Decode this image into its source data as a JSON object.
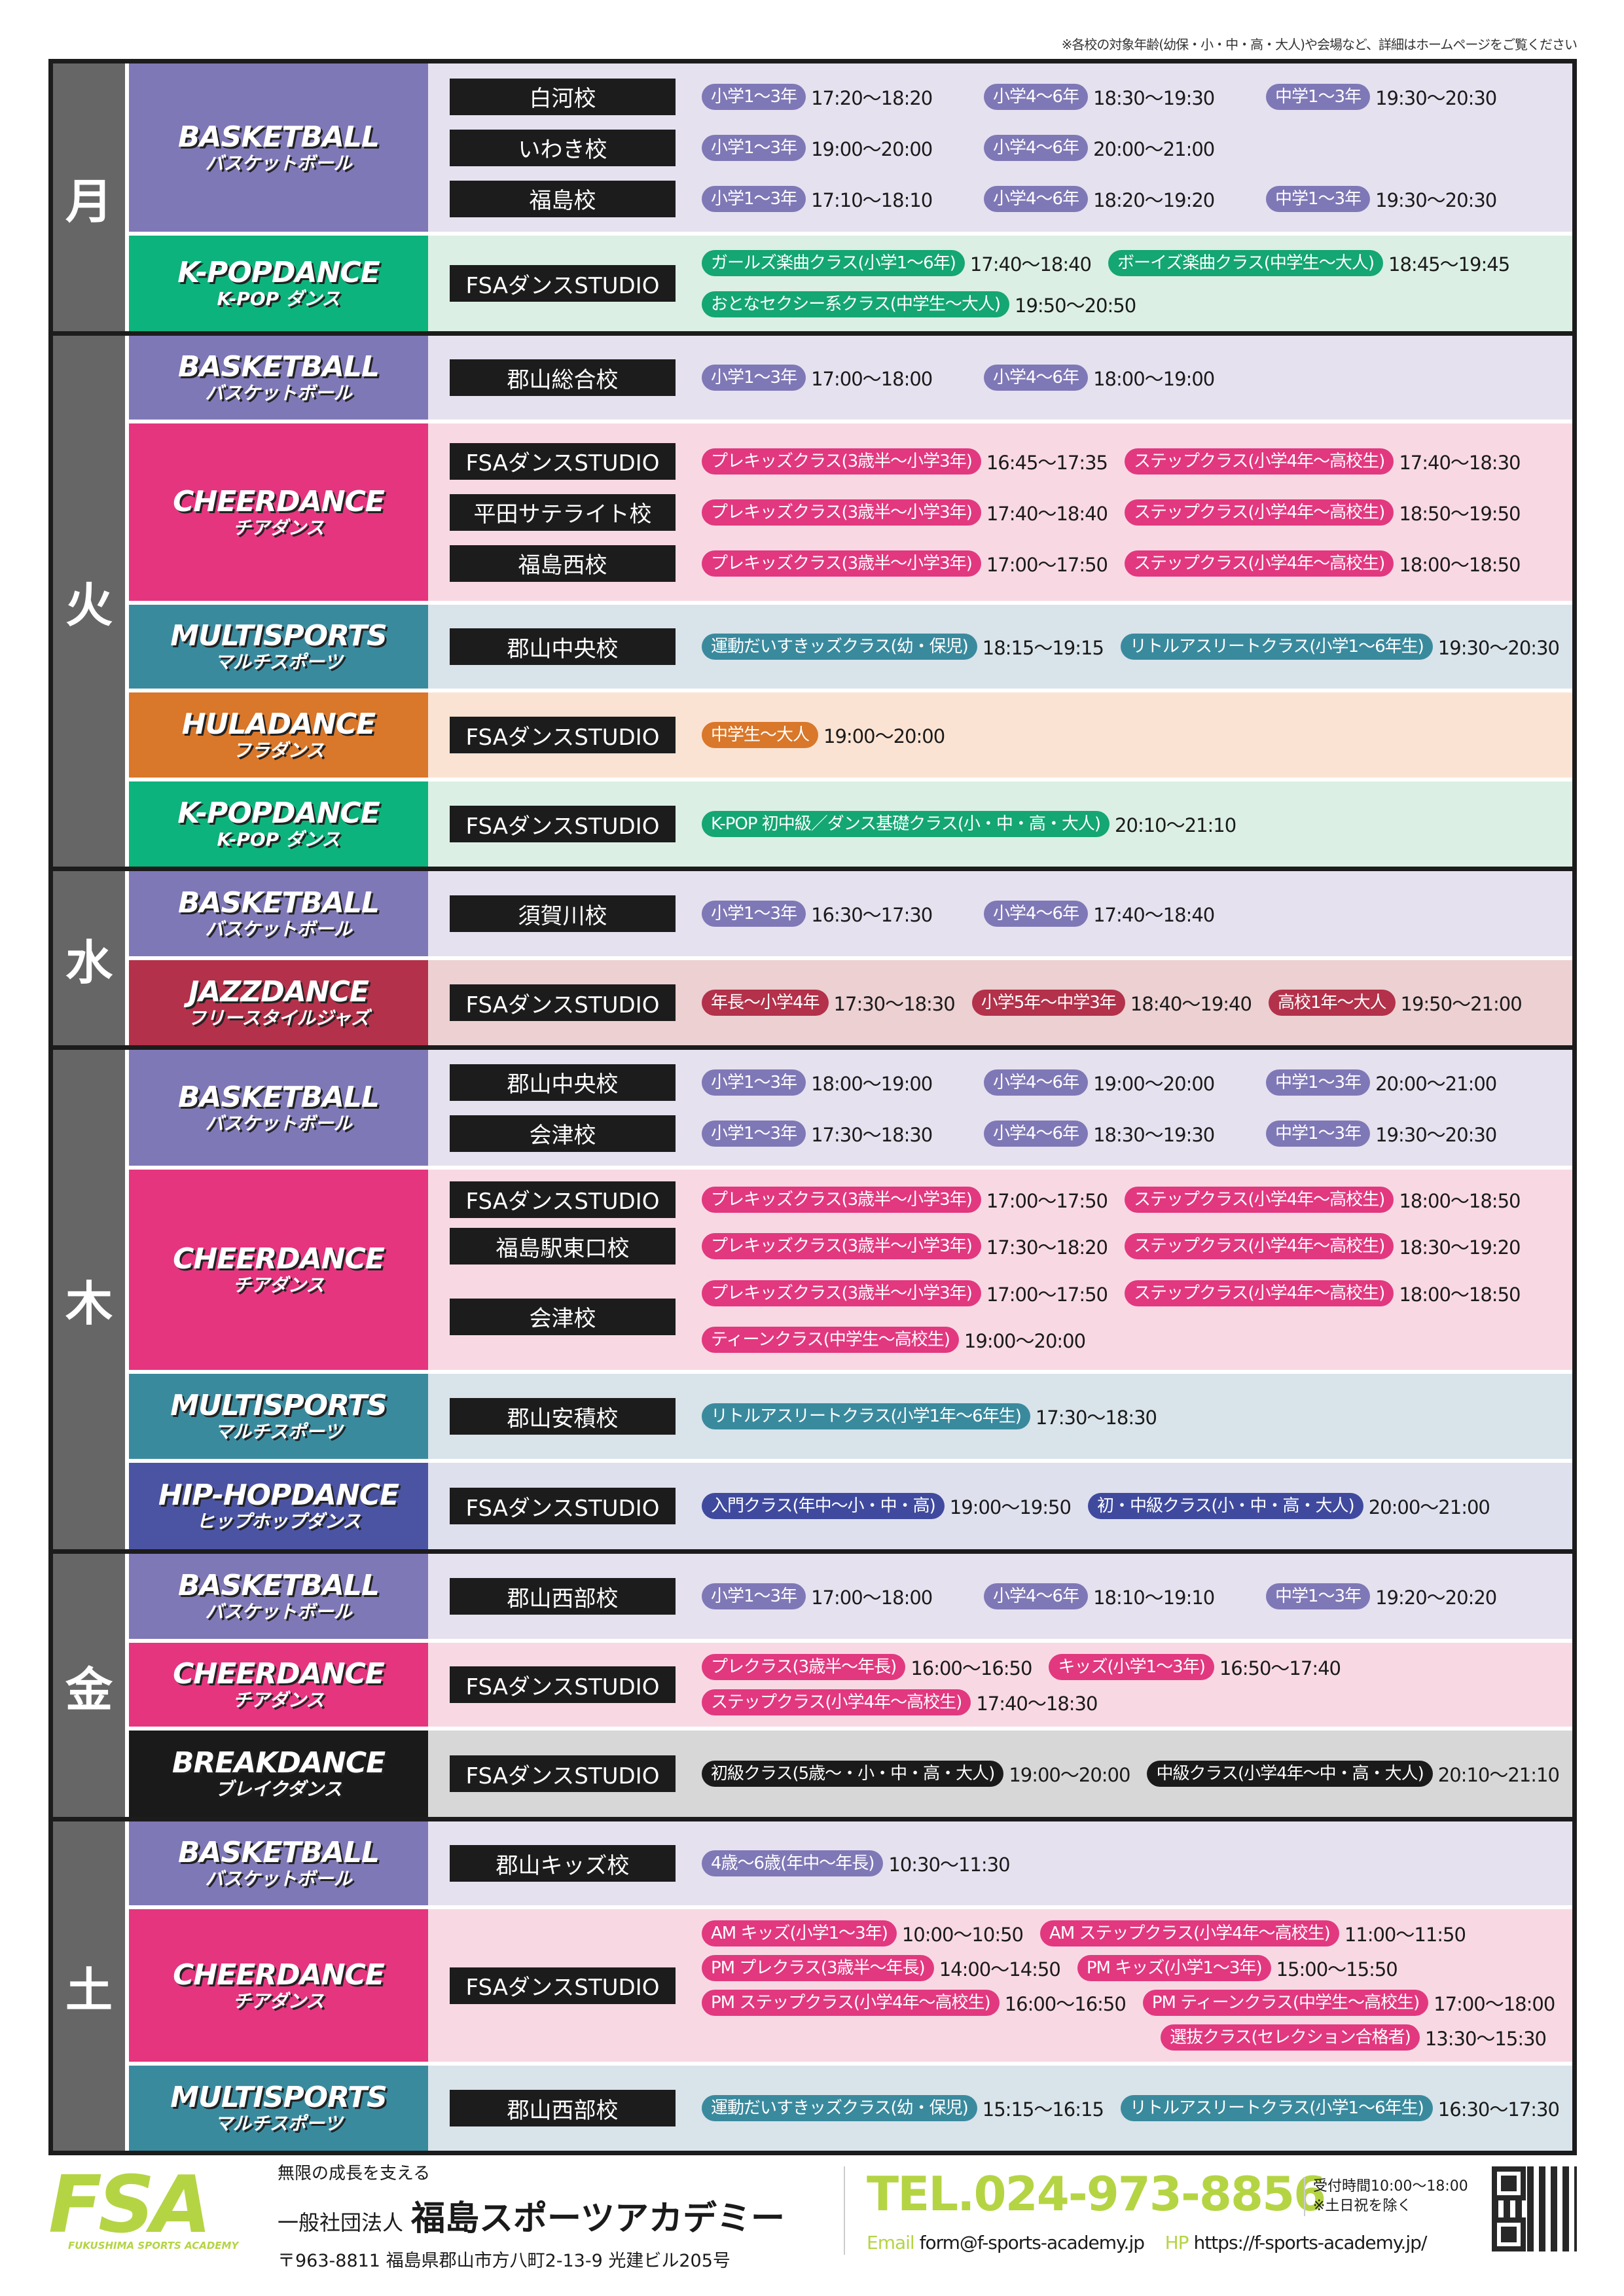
{
  "note": "※各校の対象年齢(幼保・小・中・高・大人)や会場など、詳細はホームページをご覧ください",
  "theme": {
    "basketball": {
      "color": "#7f78b6",
      "bg": "#e6e1ef",
      "chip": "#7f78b6"
    },
    "kpop": {
      "color": "#0db37c",
      "bg": "#dcefe4",
      "chip": "#14a673"
    },
    "cheer": {
      "color": "#e5357f",
      "bg": "#f8d9e3",
      "chip": "#e2387f"
    },
    "multi": {
      "color": "#3a8a9e",
      "bg": "#d9e3ea",
      "chip": "#3a8a9e"
    },
    "hula": {
      "color": "#d9772a",
      "bg": "#fbe3d3",
      "chip": "#d9772a"
    },
    "jazz": {
      "color": "#b3314a",
      "bg": "#ecd0d2",
      "chip": "#b3314a"
    },
    "hiphop": {
      "color": "#4b54a3",
      "bg": "#dfe0ee",
      "chip": "#3f4a9e"
    },
    "break": {
      "color": "#1a1a1a",
      "bg": "#d7d7d7",
      "chip": "#1a1a1a"
    }
  },
  "days": [
    {
      "day": "月",
      "sports": [
        {
          "name": "BASKETBALL",
          "sub": "バスケットボール",
          "theme": "basketball",
          "groups": [
            {
              "school": "白河校",
              "lines": [
                [
                  {
                    "label": "小学1〜3年",
                    "time": "17:20〜18:20"
                  },
                  {
                    "label": "小学4〜6年",
                    "time": "18:30〜19:30"
                  },
                  {
                    "label": "中学1〜3年",
                    "time": "19:30〜20:30"
                  }
                ]
              ]
            },
            {
              "school": "いわき校",
              "lines": [
                [
                  {
                    "label": "小学1〜3年",
                    "time": "19:00〜20:00"
                  },
                  {
                    "label": "小学4〜6年",
                    "time": "20:00〜21:00"
                  }
                ]
              ]
            },
            {
              "school": "福島校",
              "lines": [
                [
                  {
                    "label": "小学1〜3年",
                    "time": "17:10〜18:10"
                  },
                  {
                    "label": "小学4〜6年",
                    "time": "18:20〜19:20"
                  },
                  {
                    "label": "中学1〜3年",
                    "time": "19:30〜20:30"
                  }
                ]
              ]
            }
          ]
        },
        {
          "name": "K-POPDANCE",
          "sub": "K-POP ダンス",
          "theme": "kpop",
          "groups": [
            {
              "school": "FSAダンスSTUDIO",
              "lines": [
                [
                  {
                    "label": "ガールズ楽曲クラス(小学1〜6年)",
                    "time": "17:40〜18:40"
                  },
                  {
                    "label": "ボーイズ楽曲クラス(中学生〜大人)",
                    "time": "18:45〜19:45"
                  }
                ],
                [
                  {
                    "label": "おとなセクシー系クラス(中学生〜大人)",
                    "time": "19:50〜20:50"
                  }
                ]
              ]
            }
          ]
        }
      ]
    },
    {
      "day": "火",
      "sports": [
        {
          "name": "BASKETBALL",
          "sub": "バスケットボール",
          "theme": "basketball",
          "groups": [
            {
              "school": "郡山総合校",
              "lines": [
                [
                  {
                    "label": "小学1〜3年",
                    "time": "17:00〜18:00"
                  },
                  {
                    "label": "小学4〜6年",
                    "time": "18:00〜19:00"
                  }
                ]
              ]
            }
          ]
        },
        {
          "name": "CHEERDANCE",
          "sub": "チアダンス",
          "theme": "cheer",
          "groups": [
            {
              "school": "FSAダンスSTUDIO",
              "lines": [
                [
                  {
                    "label": "プレキッズクラス(3歳半〜小学3年)",
                    "time": "16:45〜17:35"
                  },
                  {
                    "label": "ステップクラス(小学4年〜高校生)",
                    "time": "17:40〜18:30"
                  }
                ]
              ]
            },
            {
              "school": "平田サテライト校",
              "lines": [
                [
                  {
                    "label": "プレキッズクラス(3歳半〜小学3年)",
                    "time": "17:40〜18:40"
                  },
                  {
                    "label": "ステップクラス(小学4年〜高校生)",
                    "time": "18:50〜19:50"
                  }
                ]
              ]
            },
            {
              "school": "福島西校",
              "lines": [
                [
                  {
                    "label": "プレキッズクラス(3歳半〜小学3年)",
                    "time": "17:00〜17:50"
                  },
                  {
                    "label": "ステップクラス(小学4年〜高校生)",
                    "time": "18:00〜18:50"
                  }
                ]
              ]
            }
          ]
        },
        {
          "name": "MULTISPORTS",
          "sub": "マルチスポーツ",
          "theme": "multi",
          "groups": [
            {
              "school": "郡山中央校",
              "lines": [
                [
                  {
                    "label": "運動だいすきッズクラス(幼・保児)",
                    "time": "18:15〜19:15"
                  },
                  {
                    "label": "リトルアスリートクラス(小学1〜6年生)",
                    "time": "19:30〜20:30"
                  }
                ]
              ]
            }
          ]
        },
        {
          "name": "HULADANCE",
          "sub": "フラダンス",
          "theme": "hula",
          "groups": [
            {
              "school": "FSAダンスSTUDIO",
              "lines": [
                [
                  {
                    "label": "中学生〜大人",
                    "time": "19:00〜20:00"
                  }
                ]
              ]
            }
          ]
        },
        {
          "name": "K-POPDANCE",
          "sub": "K-POP ダンス",
          "theme": "kpop",
          "groups": [
            {
              "school": "FSAダンスSTUDIO",
              "lines": [
                [
                  {
                    "label": "K-POP 初中級／ダンス基礎クラス(小・中・高・大人)",
                    "time": "20:10〜21:10"
                  }
                ]
              ]
            }
          ]
        }
      ]
    },
    {
      "day": "水",
      "sports": [
        {
          "name": "BASKETBALL",
          "sub": "バスケットボール",
          "theme": "basketball",
          "groups": [
            {
              "school": "須賀川校",
              "lines": [
                [
                  {
                    "label": "小学1〜3年",
                    "time": "16:30〜17:30"
                  },
                  {
                    "label": "小学4〜6年",
                    "time": "17:40〜18:40"
                  }
                ]
              ]
            }
          ]
        },
        {
          "name": "JAZZDANCE",
          "sub": "フリースタイルジャズ",
          "theme": "jazz",
          "groups": [
            {
              "school": "FSAダンスSTUDIO",
              "lines": [
                [
                  {
                    "label": "年長〜小学4年",
                    "time": "17:30〜18:30"
                  },
                  {
                    "label": "小学5年〜中学3年",
                    "time": "18:40〜19:40"
                  },
                  {
                    "label": "高校1年〜大人",
                    "time": "19:50〜21:00"
                  }
                ]
              ]
            }
          ]
        }
      ]
    },
    {
      "day": "木",
      "sports": [
        {
          "name": "BASKETBALL",
          "sub": "バスケットボール",
          "theme": "basketball",
          "groups": [
            {
              "school": "郡山中央校",
              "lines": [
                [
                  {
                    "label": "小学1〜3年",
                    "time": "18:00〜19:00"
                  },
                  {
                    "label": "小学4〜6年",
                    "time": "19:00〜20:00"
                  },
                  {
                    "label": "中学1〜3年",
                    "time": "20:00〜21:00"
                  }
                ]
              ]
            },
            {
              "school": "会津校",
              "lines": [
                [
                  {
                    "label": "小学1〜3年",
                    "time": "17:30〜18:30"
                  },
                  {
                    "label": "小学4〜6年",
                    "time": "18:30〜19:30"
                  },
                  {
                    "label": "中学1〜3年",
                    "time": "19:30〜20:30"
                  }
                ]
              ]
            }
          ]
        },
        {
          "name": "CHEERDANCE",
          "sub": "チアダンス",
          "theme": "cheer",
          "groups": [
            {
              "school": "FSAダンスSTUDIO",
              "lines": [
                [
                  {
                    "label": "プレキッズクラス(3歳半〜小学3年)",
                    "time": "17:00〜17:50"
                  },
                  {
                    "label": "ステップクラス(小学4年〜高校生)",
                    "time": "18:00〜18:50"
                  }
                ]
              ]
            },
            {
              "school": "福島駅東口校",
              "lines": [
                [
                  {
                    "label": "プレキッズクラス(3歳半〜小学3年)",
                    "time": "17:30〜18:20"
                  },
                  {
                    "label": "ステップクラス(小学4年〜高校生)",
                    "time": "18:30〜19:20"
                  }
                ]
              ]
            },
            {
              "school": "会津校",
              "lines": [
                [
                  {
                    "label": "プレキッズクラス(3歳半〜小学3年)",
                    "time": "17:00〜17:50"
                  },
                  {
                    "label": "ステップクラス(小学4年〜高校生)",
                    "time": "18:00〜18:50"
                  }
                ],
                [
                  {
                    "label": "ティーンクラス(中学生〜高校生)",
                    "time": "19:00〜20:00"
                  }
                ]
              ]
            }
          ]
        },
        {
          "name": "MULTISPORTS",
          "sub": "マルチスポーツ",
          "theme": "multi",
          "groups": [
            {
              "school": "郡山安積校",
              "lines": [
                [
                  {
                    "label": "リトルアスリートクラス(小学1年〜6年生)",
                    "time": "17:30〜18:30"
                  }
                ]
              ]
            }
          ]
        },
        {
          "name": "HIP-HOPDANCE",
          "sub": "ヒップホップダンス",
          "theme": "hiphop",
          "groups": [
            {
              "school": "FSAダンスSTUDIO",
              "lines": [
                [
                  {
                    "label": "入門クラス(年中〜小・中・高)",
                    "time": "19:00〜19:50"
                  },
                  {
                    "label": "初・中級クラス(小・中・高・大人)",
                    "time": "20:00〜21:00"
                  }
                ]
              ]
            }
          ]
        }
      ]
    },
    {
      "day": "金",
      "sports": [
        {
          "name": "BASKETBALL",
          "sub": "バスケットボール",
          "theme": "basketball",
          "groups": [
            {
              "school": "郡山西部校",
              "lines": [
                [
                  {
                    "label": "小学1〜3年",
                    "time": "17:00〜18:00"
                  },
                  {
                    "label": "小学4〜6年",
                    "time": "18:10〜19:10"
                  },
                  {
                    "label": "中学1〜3年",
                    "time": "19:20〜20:20"
                  }
                ]
              ]
            }
          ]
        },
        {
          "name": "CHEERDANCE",
          "sub": "チアダンス",
          "theme": "cheer",
          "groups": [
            {
              "school": "FSAダンスSTUDIO",
              "lines": [
                [
                  {
                    "label": "プレクラス(3歳半〜年長)",
                    "time": "16:00〜16:50"
                  },
                  {
                    "label": "キッズ(小学1〜3年)",
                    "time": "16:50〜17:40"
                  }
                ],
                [
                  {
                    "label": "ステップクラス(小学4年〜高校生)",
                    "time": "17:40〜18:30"
                  }
                ]
              ]
            }
          ]
        },
        {
          "name": "BREAKDANCE",
          "sub": "ブレイクダンス",
          "theme": "break",
          "groups": [
            {
              "school": "FSAダンスSTUDIO",
              "lines": [
                [
                  {
                    "label": "初級クラス(5歳〜・小・中・高・大人)",
                    "time": "19:00〜20:00"
                  },
                  {
                    "label": "中級クラス(小学4年〜中・高・大人)",
                    "time": "20:10〜21:10"
                  }
                ]
              ]
            }
          ]
        }
      ]
    },
    {
      "day": "土",
      "sports": [
        {
          "name": "BASKETBALL",
          "sub": "バスケットボール",
          "theme": "basketball",
          "groups": [
            {
              "school": "郡山キッズ校",
              "lines": [
                [
                  {
                    "label": "4歳〜6歳(年中〜年長)",
                    "time": "10:30〜11:30"
                  }
                ]
              ]
            }
          ]
        },
        {
          "name": "CHEERDANCE",
          "sub": "チアダンス",
          "theme": "cheer",
          "groups": [
            {
              "school": "FSAダンスSTUDIO",
              "lines": [
                [
                  {
                    "label": "AM キッズ(小学1〜3年)",
                    "time": "10:00〜10:50"
                  },
                  {
                    "label": "AM ステップクラス(小学4年〜高校生)",
                    "time": "11:00〜11:50"
                  }
                ],
                [
                  {
                    "label": "PM プレクラス(3歳半〜年長)",
                    "time": "14:00〜14:50"
                  },
                  {
                    "label": "PM キッズ(小学1〜3年)",
                    "time": "15:00〜15:50"
                  }
                ],
                [
                  {
                    "label": "PM ステップクラス(小学4年〜高校生)",
                    "time": "16:00〜16:50"
                  },
                  {
                    "label": "PM ティーンクラス(中学生〜高校生)",
                    "time": "17:00〜18:00"
                  }
                ],
                [
                  {
                    "label": "選抜クラス(セレクション合格者)",
                    "time": "13:30〜15:30"
                  }
                ]
              ]
            }
          ]
        },
        {
          "name": "MULTISPORTS",
          "sub": "マルチスポーツ",
          "theme": "multi",
          "groups": [
            {
              "school": "郡山西部校",
              "lines": [
                [
                  {
                    "label": "運動だいすきッズクラス(幼・保児)",
                    "time": "15:15〜16:15"
                  },
                  {
                    "label": "リトルアスリートクラス(小学1〜6年生)",
                    "time": "16:30〜17:30"
                  }
                ]
              ]
            }
          ]
        }
      ]
    }
  ],
  "footer": {
    "logo_text": "FSA",
    "logo_sub": "FUKUSHIMA SPORTS ACADEMY",
    "tagline": "無限の成長を支える",
    "org_prefix": "一般社団法人",
    "org_name": "福島スポーツアカデミー",
    "address": "〒963-8811 福島県郡山市方八町2-13-9 光建ビル205号",
    "tel": "TEL.024-973-8856",
    "hours": "受付時間10:00〜18:00",
    "closed": "※土日祝を除く",
    "email_label": "Email",
    "email": "form@f-sports-academy.jp",
    "hp_label": "HP",
    "hp": "https://f-sports-academy.jp/",
    "qr_icon": "qr-code-icon"
  }
}
